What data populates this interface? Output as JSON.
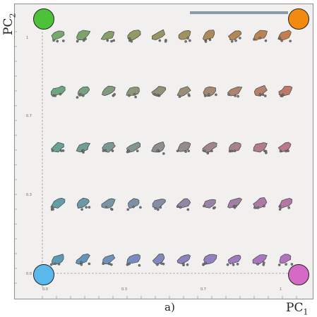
{
  "axes": {
    "y_label_main": "PC",
    "y_label_sub": "2",
    "x_label_main": "PC",
    "x_label_sub": "1",
    "caption": "a)"
  },
  "y_ticks": [
    "1",
    "0.7",
    "0.3",
    "0.0"
  ],
  "x_ticks": [
    "0.0",
    "0.3",
    "0.7",
    "1"
  ],
  "corners": {
    "top_left": "#4cc23a",
    "top_right": "#f28a12",
    "bottom_left": "#5ab8ea",
    "bottom_right": "#d46ac4"
  },
  "scale_bar_color": "#8b9aaa",
  "grid": {
    "columns": 10,
    "rows": 5,
    "color_top_left": "#76a872",
    "color_top_right": "#c27e4e",
    "color_bottom_left": "#5c9ab8",
    "color_bottom_right": "#b073c0"
  }
}
